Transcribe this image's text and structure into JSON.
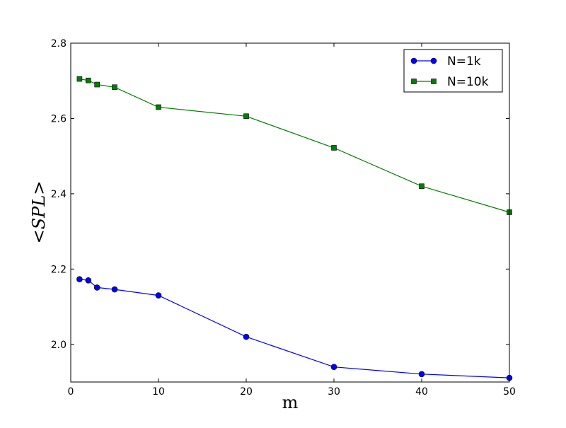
{
  "chart_data": {
    "type": "line",
    "xlabel": "m",
    "ylabel": "<SPL>",
    "xlim": [
      0,
      50
    ],
    "ylim": [
      1.9,
      2.8
    ],
    "x_ticks": [
      0,
      10,
      20,
      30,
      40,
      50
    ],
    "x_tick_labels": [
      "0",
      "10",
      "20",
      "30",
      "40",
      "50"
    ],
    "y_ticks": [
      2.0,
      2.2,
      2.4,
      2.6,
      2.8
    ],
    "y_tick_labels": [
      "2.0",
      "2.2",
      "2.4",
      "2.6",
      "2.8"
    ],
    "grid": false,
    "legend_position": "top-right",
    "series": [
      {
        "name": "N=1k",
        "color": "#0000ff",
        "marker": "circle",
        "x": [
          1,
          2,
          3,
          5,
          10,
          20,
          30,
          40,
          50
        ],
        "y": [
          2.173,
          2.17,
          2.151,
          2.146,
          2.13,
          2.02,
          1.94,
          1.921,
          1.911
        ]
      },
      {
        "name": "N=10k",
        "color": "#008000",
        "marker": "square",
        "x": [
          1,
          2,
          3,
          5,
          10,
          20,
          30,
          40,
          50
        ],
        "y": [
          2.705,
          2.701,
          2.69,
          2.683,
          2.63,
          2.606,
          2.522,
          2.42,
          2.351
        ]
      }
    ]
  }
}
